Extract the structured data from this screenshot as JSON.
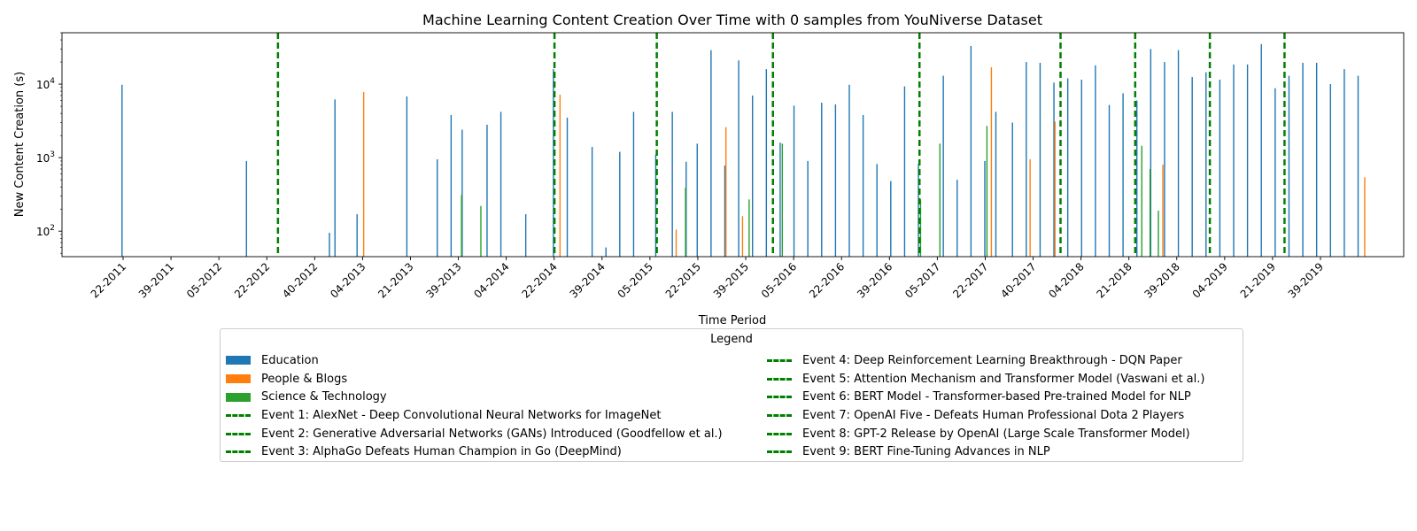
{
  "chart_data": {
    "type": "bar",
    "title": "Machine Learning Content Creation Over Time with 0 samples from YouNiverse Dataset",
    "xlabel": "Time Period",
    "ylabel": "New Content Creation (s)",
    "yscale": "log",
    "ylim": [
      45,
      50000
    ],
    "y_ticks": [
      {
        "value": 100,
        "base": "10",
        "exp": "2"
      },
      {
        "value": 1000,
        "base": "10",
        "exp": "3"
      },
      {
        "value": 10000,
        "base": "10",
        "exp": "4"
      }
    ],
    "grid": false,
    "period_start": "22-2011",
    "period_end": "39-2019",
    "tick_labels": [
      "22-2011",
      "39-2011",
      "05-2012",
      "22-2012",
      "40-2012",
      "04-2013",
      "21-2013",
      "39-2013",
      "04-2014",
      "22-2014",
      "39-2014",
      "05-2015",
      "22-2015",
      "39-2015",
      "05-2016",
      "22-2016",
      "39-2016",
      "05-2017",
      "22-2017",
      "40-2017",
      "04-2018",
      "21-2018",
      "39-2018",
      "04-2019",
      "21-2019",
      "39-2019"
    ],
    "colors": {
      "Education": "#1f77b4",
      "People & Blogs": "#ff7f0e",
      "Science & Technology": "#2ca02c",
      "event": "#008000"
    },
    "series": [
      {
        "name": "Education",
        "points": [
          {
            "x": "22-2011",
            "y": 9800
          },
          {
            "x": "15-2012",
            "y": 900
          },
          {
            "x": "45-2012",
            "y": 95
          },
          {
            "x": "47-2012",
            "y": 6200
          },
          {
            "x": "03-2013",
            "y": 170
          },
          {
            "x": "21-2013",
            "y": 6800
          },
          {
            "x": "32-2013",
            "y": 950
          },
          {
            "x": "37-2013",
            "y": 3800
          },
          {
            "x": "41-2013",
            "y": 2400
          },
          {
            "x": "50-2013",
            "y": 2800
          },
          {
            "x": "03-2014",
            "y": 4200
          },
          {
            "x": "12-2014",
            "y": 170
          },
          {
            "x": "22-2014",
            "y": 16000
          },
          {
            "x": "27-2014",
            "y": 3500
          },
          {
            "x": "36-2014",
            "y": 1400
          },
          {
            "x": "41-2014",
            "y": 60
          },
          {
            "x": "46-2014",
            "y": 1200
          },
          {
            "x": "51-2014",
            "y": 4200
          },
          {
            "x": "07-2015",
            "y": 1100
          },
          {
            "x": "13-2015",
            "y": 4200
          },
          {
            "x": "18-2015",
            "y": 880
          },
          {
            "x": "22-2015",
            "y": 1550
          },
          {
            "x": "27-2015",
            "y": 29000
          },
          {
            "x": "32-2015",
            "y": 780
          },
          {
            "x": "37-2015",
            "y": 21000
          },
          {
            "x": "42-2015",
            "y": 7000
          },
          {
            "x": "47-2015",
            "y": 16000
          },
          {
            "x": "52-2015",
            "y": 1600
          },
          {
            "x": "05-2016",
            "y": 5100
          },
          {
            "x": "10-2016",
            "y": 900
          },
          {
            "x": "15-2016",
            "y": 5600
          },
          {
            "x": "20-2016",
            "y": 5300
          },
          {
            "x": "25-2016",
            "y": 9800
          },
          {
            "x": "30-2016",
            "y": 3800
          },
          {
            "x": "35-2016",
            "y": 820
          },
          {
            "x": "40-2016",
            "y": 480
          },
          {
            "x": "45-2016",
            "y": 9300
          },
          {
            "x": "50-2016",
            "y": 820
          },
          {
            "x": "07-2017",
            "y": 13000
          },
          {
            "x": "12-2017",
            "y": 500
          },
          {
            "x": "17-2017",
            "y": 33000
          },
          {
            "x": "22-2017",
            "y": 900
          },
          {
            "x": "26-2017",
            "y": 4200
          },
          {
            "x": "32-2017",
            "y": 3000
          },
          {
            "x": "37-2017",
            "y": 20000
          },
          {
            "x": "42-2017",
            "y": 19500
          },
          {
            "x": "47-2017",
            "y": 10500
          },
          {
            "x": "52-2017",
            "y": 12000
          },
          {
            "x": "05-2018",
            "y": 11500
          },
          {
            "x": "10-2018",
            "y": 18000
          },
          {
            "x": "15-2018",
            "y": 5200
          },
          {
            "x": "20-2018",
            "y": 7500
          },
          {
            "x": "25-2018",
            "y": 6000
          },
          {
            "x": "30-2018",
            "y": 30000
          },
          {
            "x": "35-2018",
            "y": 20000
          },
          {
            "x": "40-2018",
            "y": 29000
          },
          {
            "x": "45-2018",
            "y": 12500
          },
          {
            "x": "50-2018",
            "y": 14500
          },
          {
            "x": "03-2019",
            "y": 11500
          },
          {
            "x": "08-2019",
            "y": 18500
          },
          {
            "x": "13-2019",
            "y": 18500
          },
          {
            "x": "18-2019",
            "y": 35000
          },
          {
            "x": "23-2019",
            "y": 8800
          },
          {
            "x": "28-2019",
            "y": 13000
          },
          {
            "x": "33-2019",
            "y": 19500
          },
          {
            "x": "38-2019",
            "y": 19500
          },
          {
            "x": "43-2019",
            "y": 10000
          },
          {
            "x": "48-2019",
            "y": 16000
          },
          {
            "x": "53-2019",
            "y": 13000
          }
        ]
      },
      {
        "name": "People & Blogs",
        "points": [
          {
            "x": "05-2013",
            "y": 7800
          },
          {
            "x": "24-2014",
            "y": 7200
          },
          {
            "x": "14-2015",
            "y": 105
          },
          {
            "x": "38-2015",
            "y": 160
          },
          {
            "x": "32-2015",
            "y": 2600
          },
          {
            "x": "24-2017",
            "y": 17000
          },
          {
            "x": "38-2017",
            "y": 950
          },
          {
            "x": "47-2017",
            "y": 3100
          },
          {
            "x": "34-2018",
            "y": 800
          },
          {
            "x": "55-2019",
            "y": 540
          }
        ]
      },
      {
        "name": "Science & Technology",
        "points": [
          {
            "x": "40-2013",
            "y": 310
          },
          {
            "x": "47-2013",
            "y": 220
          },
          {
            "x": "17-2015",
            "y": 390
          },
          {
            "x": "40-2015",
            "y": 270
          },
          {
            "x": "52-2015",
            "y": 1550
          },
          {
            "x": "50-2016",
            "y": 270
          },
          {
            "x": "05-2017",
            "y": 1550
          },
          {
            "x": "22-2017",
            "y": 2700
          },
          {
            "x": "26-2018",
            "y": 1450
          },
          {
            "x": "32-2018",
            "y": 190
          },
          {
            "x": "29-2018",
            "y": 700
          }
        ]
      }
    ],
    "events": [
      {
        "x": "26-2012",
        "label": "Event 1: AlexNet - Deep Convolutional Neural Networks for ImageNet"
      },
      {
        "x": "22-2014",
        "label": "Event 2: Generative Adversarial Networks (GANs) Introduced (Goodfellow et al.)"
      },
      {
        "x": "07-2015",
        "label": "Event 3: AlphaGo Defeats Human Champion in Go (DeepMind)"
      },
      {
        "x": "49-2015",
        "label": "Event 4: Deep Reinforcement Learning Breakthrough - DQN Paper"
      },
      {
        "x": "50-2016",
        "label": "Event 5: Attention Mechanism and Transformer Model (Vaswani et al.)"
      },
      {
        "x": "49-2017",
        "label": "Event 6: BERT Model - Transformer-based Pre-trained Model for NLP"
      },
      {
        "x": "24-2018",
        "label": "Event 7: OpenAI Five - Defeats Human Professional Dota 2 Players"
      },
      {
        "x": "51-2018",
        "label": "Event 8: GPT-2 Release by OpenAI (Large Scale Transformer Model)"
      },
      {
        "x": "26-2019",
        "label": "Event 9: BERT Fine-Tuning Advances in NLP"
      }
    ],
    "legend": {
      "title": "Legend",
      "position": "bottom-center",
      "items": [
        {
          "label": "Education",
          "kind": "bar",
          "color": "#1f77b4"
        },
        {
          "label": "People & Blogs",
          "kind": "bar",
          "color": "#ff7f0e"
        },
        {
          "label": "Science & Technology",
          "kind": "bar",
          "color": "#2ca02c"
        },
        {
          "label": "Event 1: AlexNet - Deep Convolutional Neural Networks for ImageNet",
          "kind": "line"
        },
        {
          "label": "Event 2: Generative Adversarial Networks (GANs) Introduced (Goodfellow et al.)",
          "kind": "line"
        },
        {
          "label": "Event 3: AlphaGo Defeats Human Champion in Go (DeepMind)",
          "kind": "line"
        },
        {
          "label": "Event 4: Deep Reinforcement Learning Breakthrough - DQN Paper",
          "kind": "line"
        },
        {
          "label": "Event 5: Attention Mechanism and Transformer Model (Vaswani et al.)",
          "kind": "line"
        },
        {
          "label": "Event 6: BERT Model - Transformer-based Pre-trained Model for NLP",
          "kind": "line"
        },
        {
          "label": "Event 7: OpenAI Five - Defeats Human Professional Dota 2 Players",
          "kind": "line"
        },
        {
          "label": "Event 8: GPT-2 Release by OpenAI (Large Scale Transformer Model)",
          "kind": "line"
        },
        {
          "label": "Event 9: BERT Fine-Tuning Advances in NLP",
          "kind": "line"
        }
      ]
    }
  }
}
